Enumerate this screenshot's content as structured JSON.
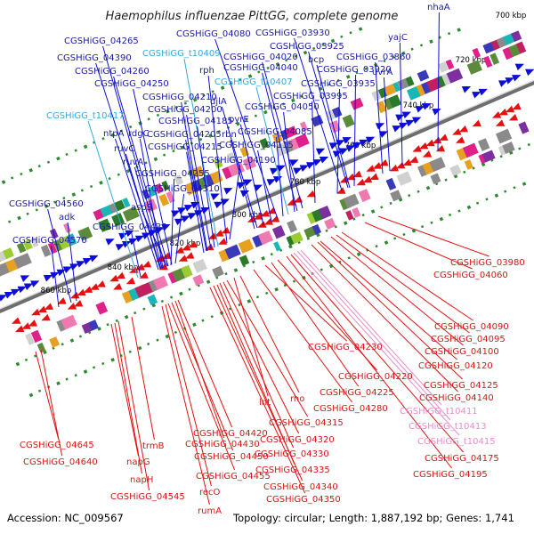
{
  "title": "Haemophilus influenzae PittGG, complete genome",
  "footer": {
    "accession": "Accession: NC_009567",
    "summary": "Topology: circular; Length: 1,887,192 bp; Genes: 1,741"
  },
  "colors": {
    "forward_label": "#1a1aa6",
    "forward_feature": "#0d0dd9",
    "reverse_label": "#d91515",
    "reverse_feature": "#e61010",
    "trna_forward_label": "#33aadd",
    "trna_reverse_label": "#e88cc8",
    "tick_dot": "#2d8a2d",
    "backbone": "#6e6e6e"
  },
  "kbp_ticks": [
    "700 kbp",
    "720 kbp",
    "740 kbp",
    "760 kbp",
    "780 kbp",
    "800 kbp",
    "820 kbp",
    "840 kbp",
    "860 kbp"
  ],
  "forward_labels": [
    "CGSHiGG_04265",
    "CGSHiGG_04390",
    "CGSHiGG_04260",
    "CGSHiGG_04250",
    "CGSHiGG_t10417",
    "ntpA",
    "rdgC",
    "ruvC",
    "ruvA",
    "CGSHiGG_04560",
    "adk",
    "CGSHiGG_04570",
    "CGSHiGG_t10409",
    "rph",
    "CGSHiGG_04210",
    "CGSHiGG_04200",
    "CGSHiGG_04185",
    "CGSHiGG_04205",
    "CGSHiGG_04215",
    "CGSHiGG_04255",
    "CGSHiGG_04310",
    "aspS",
    "CGSHiGG_04435",
    "CGSHiGG_04080",
    "CGSHiGG_03930",
    "CGSHiGG_03925",
    "CGSHiGG_04020",
    "CGSHiGG_04040",
    "CGSHiGG_t10407",
    "djlA",
    "pyrE",
    "rbn",
    "CGSHiGG_04190",
    "CGSHiGG_04115",
    "CGSHiGG_04085",
    "CGSHiGG_04050",
    "CGSHiGG_03995",
    "CGSHiGG_03935",
    "bcp",
    "CGSHiGG_03920",
    "CGSHiGG_03860",
    "uvrA",
    "yajC",
    "nhaA"
  ],
  "reverse_labels": [
    "CGSHiGG_03980",
    "CGSHiGG_04060",
    "CGSHiGG_04090",
    "CGSHiGG_04095",
    "CGSHiGG_04100",
    "CGSHiGG_04120",
    "CGSHiGG_04125",
    "CGSHiGG_04140",
    "CGSHiGG_04230",
    "CGSHiGG_04220",
    "CGSHiGG_04225",
    "CGSHiGG_04280",
    "CGSHiGG_t10411",
    "CGSHiGG_t10413",
    "CGSHiGG_t10415",
    "CGSHiGG_04175",
    "CGSHiGG_04195",
    "rho",
    "lnt",
    "CGSHiGG_04315",
    "CGSHiGG_04320",
    "CGSHiGG_04330",
    "CGSHiGG_04335",
    "CGSHiGG_04340",
    "CGSHiGG_04350",
    "CGSHiGG_04420",
    "CGSHiGG_04430",
    "CGSHiGG_04450",
    "CGSHiGG_04455",
    "recO",
    "rumA",
    "trmB",
    "napG",
    "napH",
    "CGSHiGG_04545",
    "CGSHiGG_04645",
    "CGSHiGG_04640"
  ],
  "feature_strip_palette": [
    "#7b2fa0",
    "#3a3ab8",
    "#18b6b6",
    "#2a7a2a",
    "#9ccc33",
    "#e8a020",
    "#e0208a",
    "#f07ab0",
    "#8a8a8a",
    "#5a8a3a",
    "#c02060",
    "#d0d0d0"
  ]
}
